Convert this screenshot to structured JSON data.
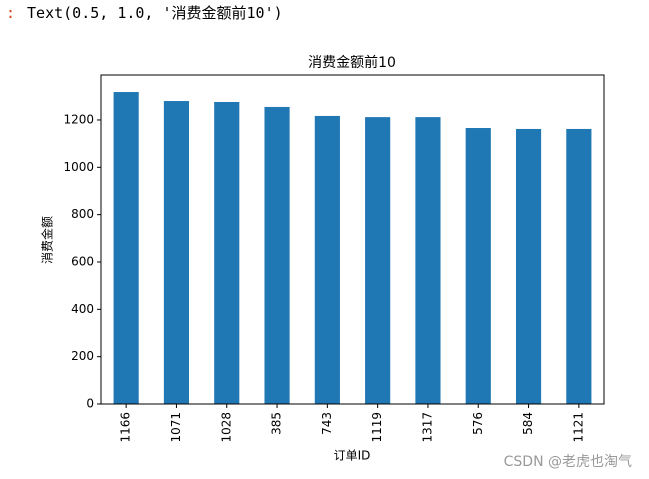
{
  "output_prompt": ":",
  "output_text": "Text(0.5, 1.0, '消费金额前10')",
  "watermark": "CSDN @老虎也淘气",
  "chart_data": {
    "type": "bar",
    "title": "消费金额前10",
    "x_label": "订单ID",
    "y_label": "消费金额",
    "categories": [
      "1166",
      "1071",
      "1028",
      "385",
      "743",
      "1119",
      "1317",
      "576",
      "584",
      "1121"
    ],
    "values": [
      1318,
      1280,
      1276,
      1255,
      1217,
      1212,
      1212,
      1166,
      1162,
      1162
    ],
    "color": "#1f77b4",
    "ylim": [
      0,
      1390
    ],
    "yticks": [
      0,
      200,
      400,
      600,
      800,
      1000,
      1200
    ],
    "grid": false
  }
}
